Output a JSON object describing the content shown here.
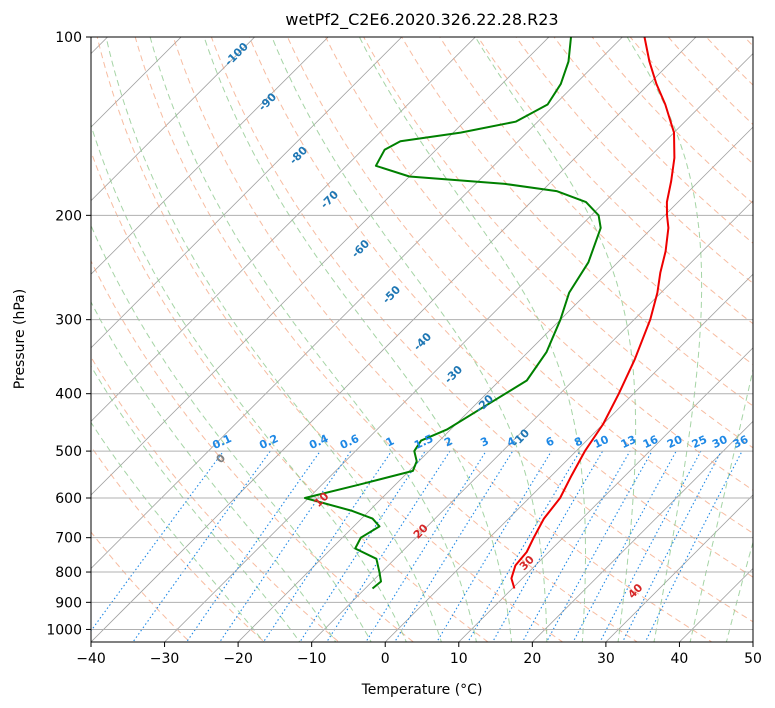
{
  "chart_data": {
    "type": "line",
    "subtype": "skew-t log-p diagram",
    "title": "wetPf2_C2E6.2020.326.22.28.R23",
    "xlabel": "Temperature (°C)",
    "ylabel": "Pressure (hPa)",
    "xlim": [
      -40,
      50
    ],
    "ylim": [
      1050,
      100
    ],
    "y_scale": "log",
    "grid": true,
    "x_ticks": [
      -40,
      -30,
      -20,
      -10,
      0,
      10,
      20,
      30,
      40,
      50
    ],
    "y_ticks": [
      100,
      200,
      300,
      400,
      500,
      600,
      700,
      800,
      900,
      1000
    ],
    "colors": {
      "temperature": "#ee0000",
      "dewpoint": "#008000",
      "dry_adiabat": "#f4a582",
      "moist_adiabat": "#8fc98f",
      "mixing_ratio": "#1e88e5",
      "isotherm": "#a0a0a0"
    },
    "series": [
      {
        "name": "",
        "role": "temperature",
        "points": [
          {
            "p": 853,
            "t": 10.3
          },
          {
            "p": 820,
            "t": 8.5
          },
          {
            "p": 780,
            "t": 7.3
          },
          {
            "p": 740,
            "t": 7.0
          },
          {
            "p": 700,
            "t": 6.0
          },
          {
            "p": 650,
            "t": 4.8
          },
          {
            "p": 600,
            "t": 4.2
          },
          {
            "p": 550,
            "t": 2.7
          },
          {
            "p": 500,
            "t": 1.2
          },
          {
            "p": 450,
            "t": 0.0
          },
          {
            "p": 400,
            "t": -2.0
          },
          {
            "p": 350,
            "t": -4.5
          },
          {
            "p": 300,
            "t": -7.8
          },
          {
            "p": 270,
            "t": -10.5
          },
          {
            "p": 250,
            "t": -12.8
          },
          {
            "p": 230,
            "t": -15.0
          },
          {
            "p": 210,
            "t": -17.8
          },
          {
            "p": 200,
            "t": -19.7
          },
          {
            "p": 190,
            "t": -21.5
          },
          {
            "p": 175,
            "t": -23.8
          },
          {
            "p": 160,
            "t": -26.5
          },
          {
            "p": 145,
            "t": -30.0
          },
          {
            "p": 130,
            "t": -35.0
          },
          {
            "p": 120,
            "t": -39.0
          },
          {
            "p": 110,
            "t": -43.0
          },
          {
            "p": 100,
            "t": -47.0
          }
        ]
      },
      {
        "name": "",
        "role": "dewpoint",
        "points": [
          {
            "p": 853,
            "t": -9.0
          },
          {
            "p": 830,
            "t": -8.8
          },
          {
            "p": 800,
            "t": -10.3
          },
          {
            "p": 760,
            "t": -12.5
          },
          {
            "p": 730,
            "t": -16.8
          },
          {
            "p": 700,
            "t": -17.5
          },
          {
            "p": 670,
            "t": -16.5
          },
          {
            "p": 650,
            "t": -18.5
          },
          {
            "p": 630,
            "t": -22.5
          },
          {
            "p": 600,
            "t": -30.5
          },
          {
            "p": 570,
            "t": -25.0
          },
          {
            "p": 540,
            "t": -19.5
          },
          {
            "p": 520,
            "t": -20.3
          },
          {
            "p": 500,
            "t": -22.0
          },
          {
            "p": 480,
            "t": -22.5
          },
          {
            "p": 460,
            "t": -20.5
          },
          {
            "p": 420,
            "t": -18.5
          },
          {
            "p": 380,
            "t": -16.3
          },
          {
            "p": 340,
            "t": -17.5
          },
          {
            "p": 300,
            "t": -20.0
          },
          {
            "p": 270,
            "t": -22.5
          },
          {
            "p": 240,
            "t": -24.0
          },
          {
            "p": 210,
            "t": -27.0
          },
          {
            "p": 200,
            "t": -29.0
          },
          {
            "p": 190,
            "t": -32.5
          },
          {
            "p": 182,
            "t": -38.0
          },
          {
            "p": 177,
            "t": -46.0
          },
          {
            "p": 172,
            "t": -60.0
          },
          {
            "p": 165,
            "t": -66.0
          },
          {
            "p": 155,
            "t": -67.0
          },
          {
            "p": 150,
            "t": -66.0
          },
          {
            "p": 145,
            "t": -59.0
          },
          {
            "p": 139,
            "t": -53.0
          },
          {
            "p": 130,
            "t": -51.0
          },
          {
            "p": 120,
            "t": -52.0
          },
          {
            "p": 110,
            "t": -54.0
          },
          {
            "p": 100,
            "t": -57.0
          }
        ]
      }
    ],
    "mixing_ratio_labels": [
      "0.1",
      "0.2",
      "0.4",
      "0.6",
      "1",
      "1.5",
      "2",
      "3",
      "4",
      "6",
      "8",
      "10",
      "13",
      "16",
      "20",
      "25",
      "30",
      "36"
    ],
    "dry_adiabat_labels": [
      "0",
      "10",
      "20",
      "30",
      "40"
    ],
    "moist_adiabat_labels": [
      "-100",
      "-90",
      "-80",
      "-70",
      "-60",
      "-50",
      "-40",
      "-30",
      "-20",
      "-10"
    ]
  }
}
